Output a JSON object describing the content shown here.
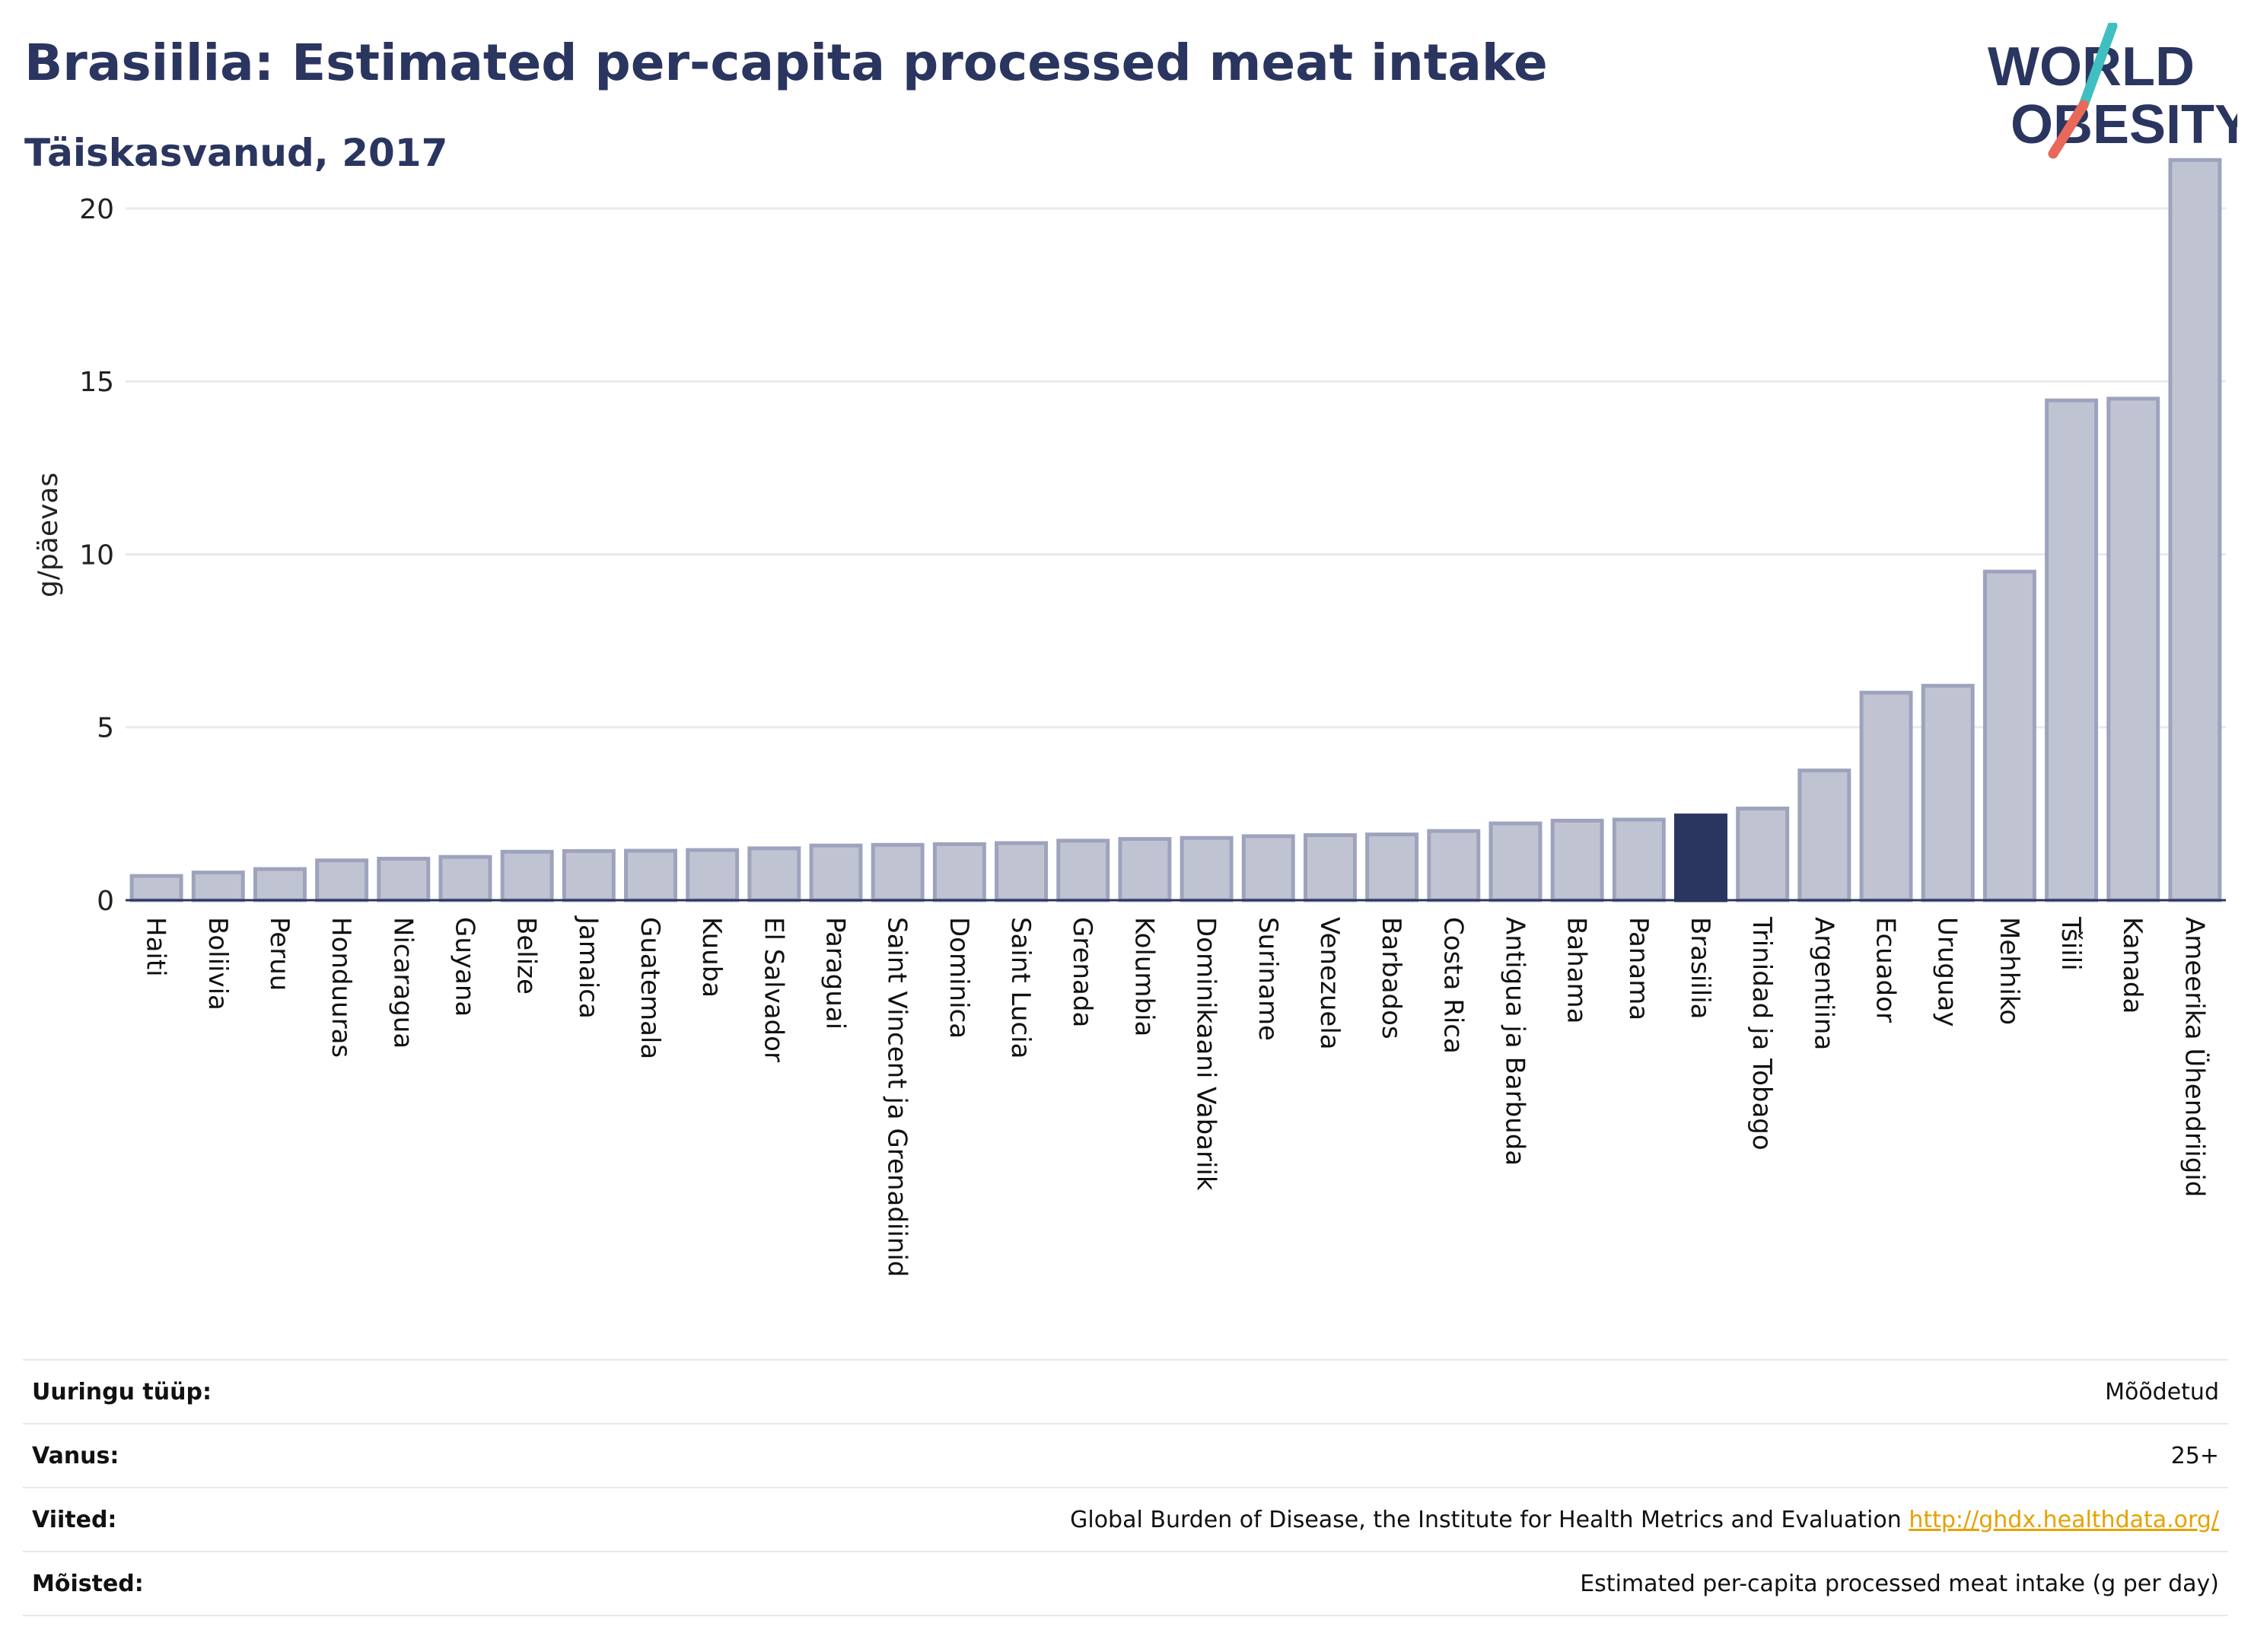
{
  "header": {
    "title": "Brasiilia: Estimated per-capita processed meat intake",
    "subtitle": "Täiskasvanud, 2017"
  },
  "logo": {
    "line1": "WORLD",
    "line2": "OBESITY",
    "color": "#2a3560",
    "slash_colors": [
      "#3fbfbf",
      "#e8685a"
    ]
  },
  "colors": {
    "bar": "#c0c4d2",
    "bar_border": "#9ea3bd",
    "highlight": "#2a3560",
    "grid": "#e9eaf0",
    "axis": "#2a3560"
  },
  "chart_data": {
    "type": "bar",
    "ylabel": "g/päevas",
    "ylim": [
      0,
      22
    ],
    "yticks": [
      0,
      5,
      10,
      15,
      20
    ],
    "grid": true,
    "highlight": "Brasiilia",
    "categories": [
      "Haiti",
      "Boliivia",
      "Peruu",
      "Honduuras",
      "Nicaragua",
      "Guyana",
      "Belize",
      "Jamaica",
      "Guatemala",
      "Kuuba",
      "El Salvador",
      "Paraguai",
      "Saint Vincent ja Grenadiinid",
      "Dominica",
      "Saint Lucia",
      "Grenada",
      "Kolumbia",
      "Dominikaani Vabariik",
      "Suriname",
      "Venezuela",
      "Barbados",
      "Costa Rica",
      "Antigua ja Barbuda",
      "Bahama",
      "Panama",
      "Brasiilia",
      "Trinidad ja Tobago",
      "Argentiina",
      "Ecuador",
      "Uruguay",
      "Mehhiko",
      "Tšiili",
      "Kanada",
      "Ameerika Ühendriigid"
    ],
    "values": [
      0.7,
      0.8,
      0.9,
      1.15,
      1.2,
      1.25,
      1.4,
      1.42,
      1.43,
      1.45,
      1.5,
      1.58,
      1.6,
      1.62,
      1.65,
      1.72,
      1.77,
      1.8,
      1.85,
      1.88,
      1.9,
      2.0,
      2.22,
      2.3,
      2.33,
      2.45,
      2.65,
      3.75,
      6.0,
      6.2,
      9.5,
      14.45,
      14.5,
      21.4
    ]
  },
  "info": [
    {
      "key": "Uuringu tüüp:",
      "value": "Mõõdetud"
    },
    {
      "key": "Vanus:",
      "value": "25+"
    },
    {
      "key": "Viited:",
      "value": "Global Burden of Disease, the Institute for Health Metrics and Evaluation",
      "link": "http://ghdx.healthdata.org/"
    },
    {
      "key": "Mõisted:",
      "value": "Estimated per-capita processed meat intake (g per day)"
    }
  ]
}
